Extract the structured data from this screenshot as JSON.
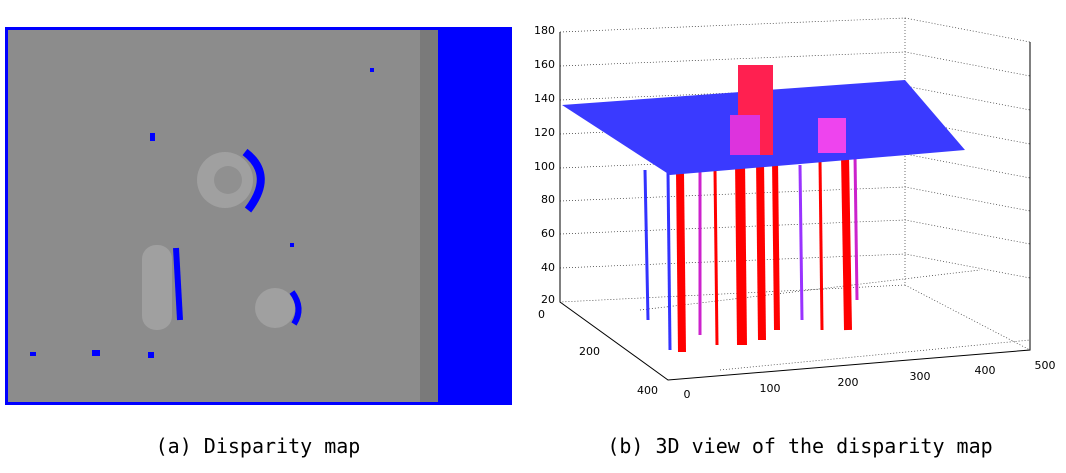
{
  "figure": {
    "panels": [
      {
        "caption": "(a) Disparity map"
      },
      {
        "caption": "(b) 3D view of the disparity map",
        "zticks": [
          20,
          40,
          60,
          80,
          100,
          120,
          140,
          160,
          180
        ],
        "yticks": [
          0,
          200,
          400
        ],
        "xticks": [
          0,
          100,
          200,
          300,
          400,
          500
        ]
      }
    ]
  }
}
